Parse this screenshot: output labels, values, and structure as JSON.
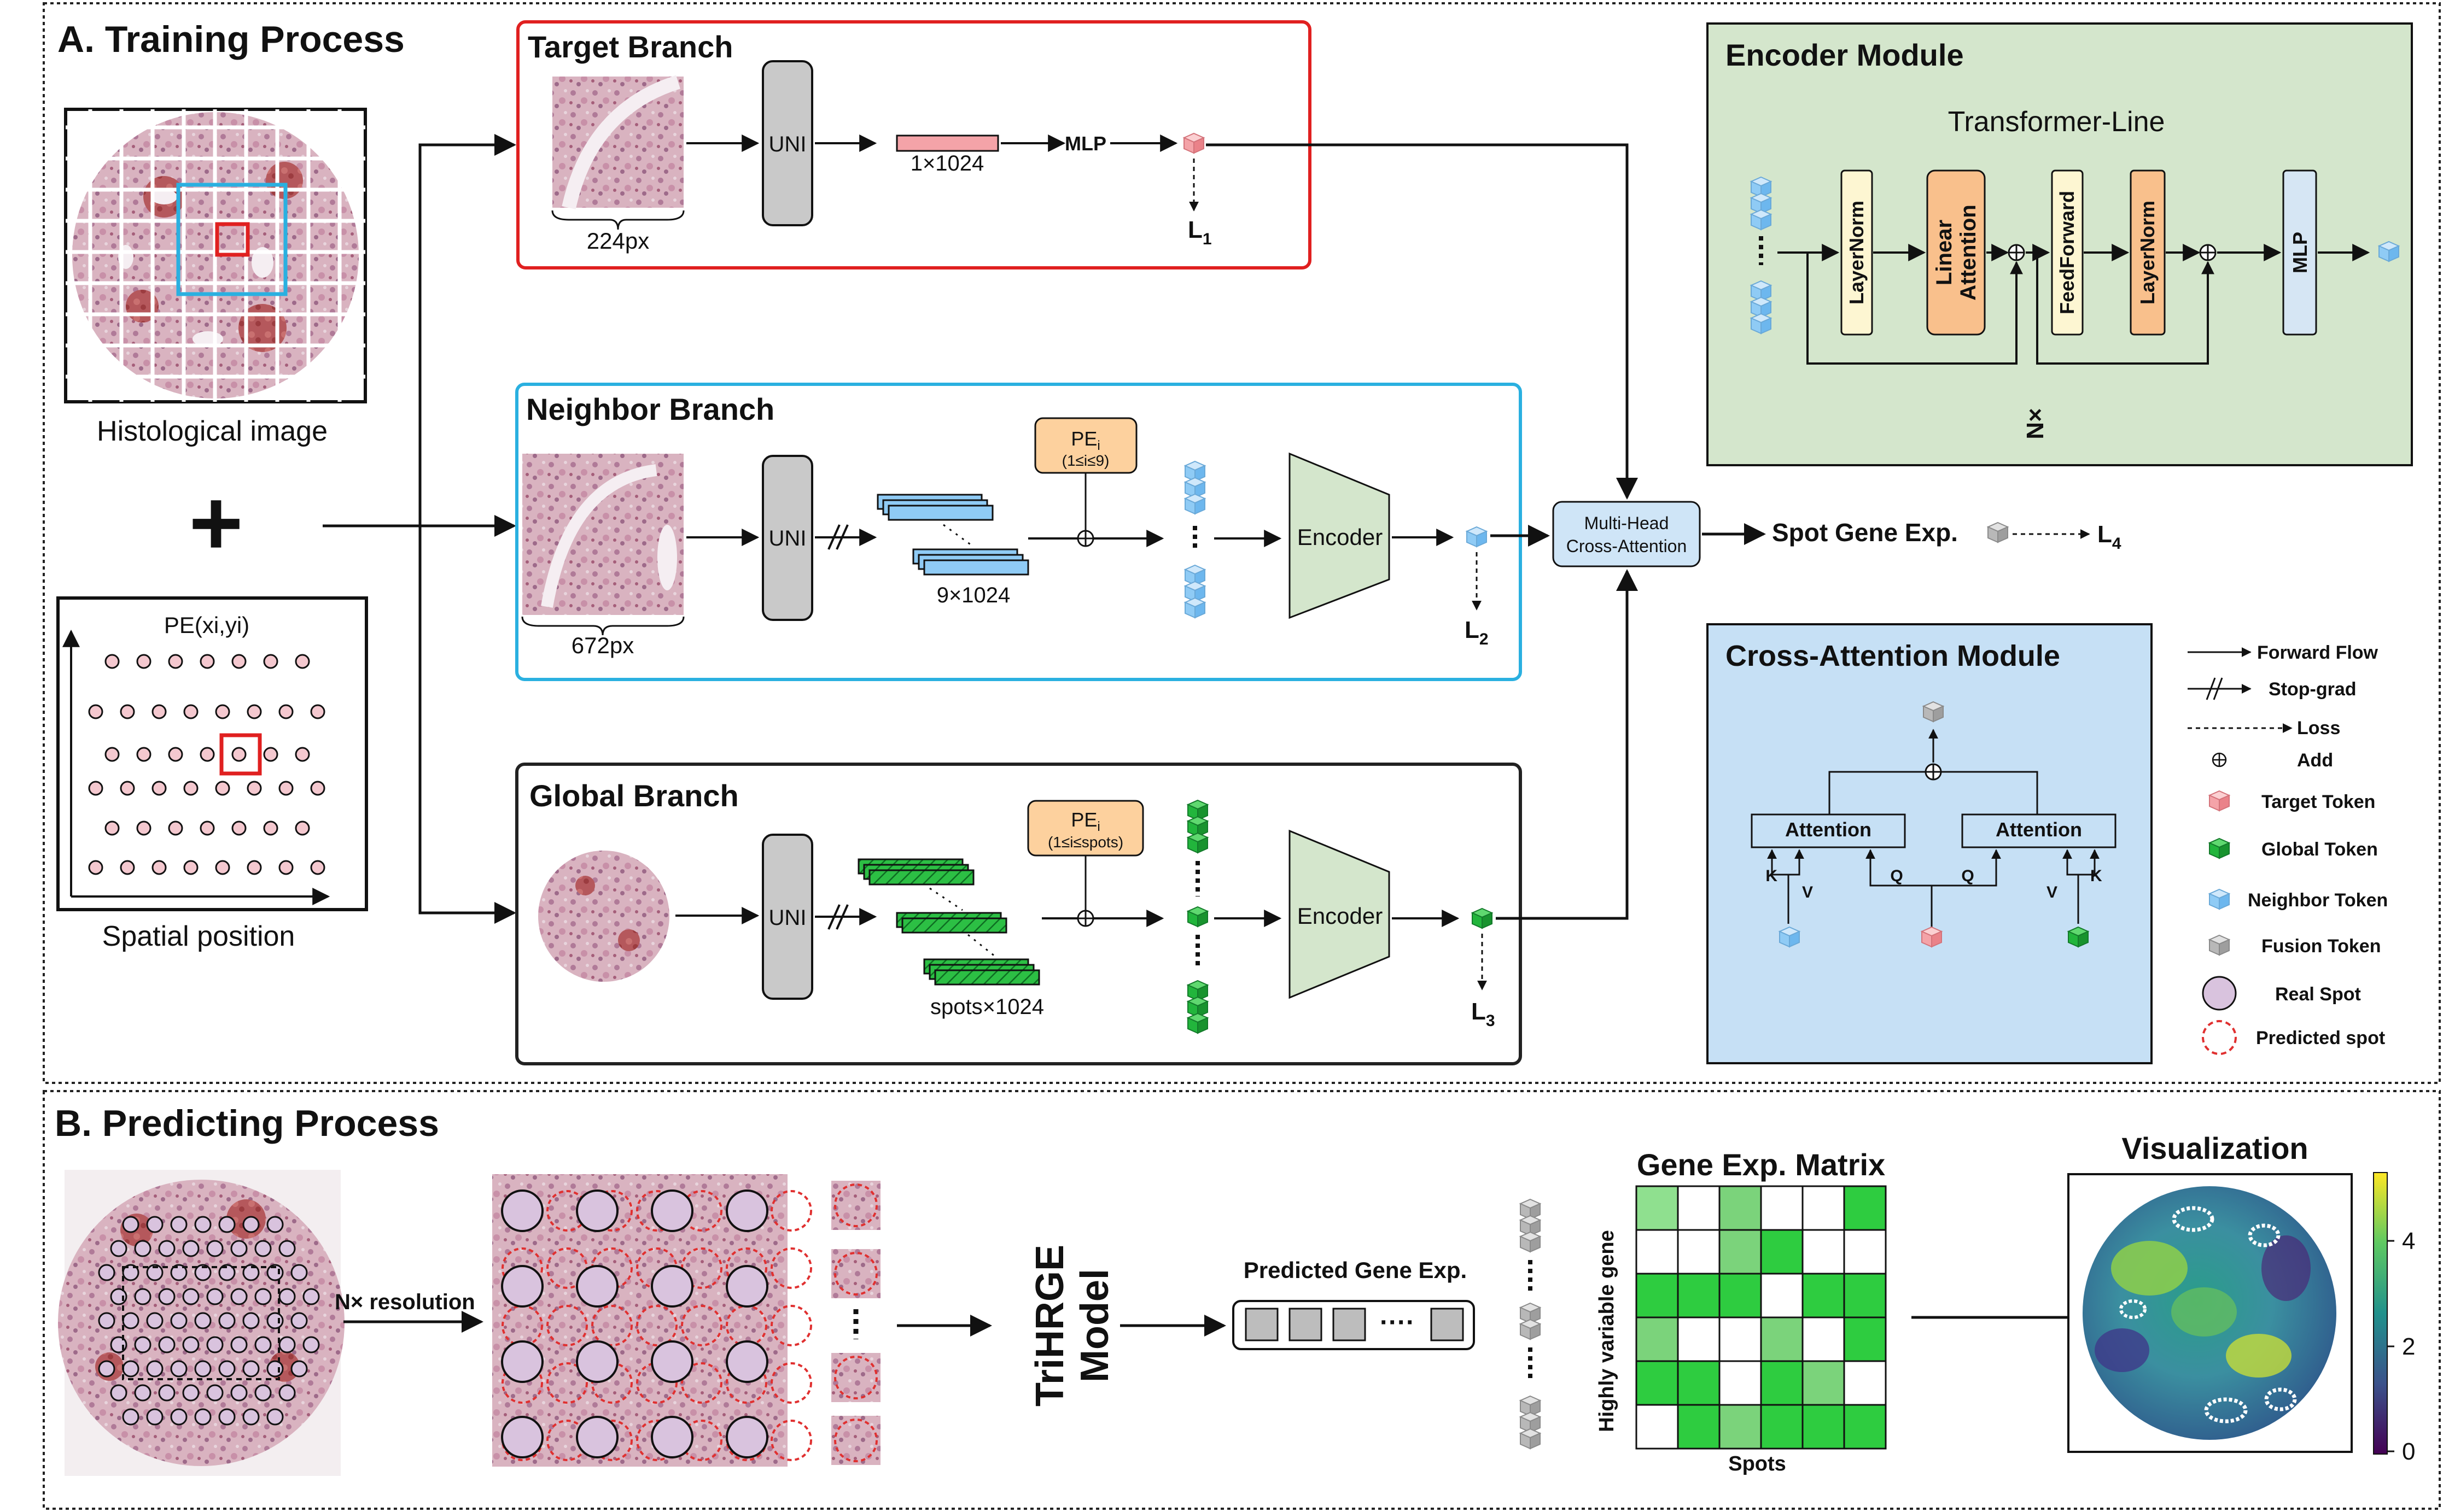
{
  "training": {
    "title": "A.  Training Process",
    "histo_label": "Histological image",
    "spatial_label": "Spatial position",
    "spatial_pe": "PE(xi,yi)",
    "target": {
      "title": "Target Branch",
      "uni": "UNI",
      "dim": "1×1024",
      "mlp": "MLP",
      "px": "224px",
      "loss": "L",
      "loss_sub": "1"
    },
    "neighbor": {
      "title": "Neighbor Branch",
      "uni": "UNI",
      "dim": "9×1024",
      "px": "672px",
      "pe": "PE",
      "pe_sub": "i",
      "pe_range": "(1≤i≤9)",
      "encoder": "Encoder",
      "loss": "L",
      "loss_sub": "2"
    },
    "global": {
      "title": "Global Branch",
      "uni": "UNI",
      "dim": "spots×1024",
      "pe": "PE",
      "pe_sub": "i",
      "pe_range": "(1≤i≤spots)",
      "encoder": "Encoder",
      "loss": "L",
      "loss_sub": "3"
    },
    "cross_attn": {
      "line1": "Multi-Head",
      "line2": "Cross-Attention"
    },
    "output": "Spot Gene Exp.",
    "output_loss": "L",
    "output_loss_sub": "4"
  },
  "encoder_module": {
    "title": "Encoder Module",
    "subtitle": "Transformer-Line",
    "layernorm1": "LayerNorm",
    "linear_attention_1": "Linear",
    "linear_attention_2": "Attention",
    "feedforward": "FeedForward",
    "layernorm2": "LayerNorm",
    "mlp": "MLP",
    "repeat": "N×"
  },
  "cross_module": {
    "title": "Cross-Attention Module",
    "attention_left": "Attention",
    "attention_right": "Attention",
    "k": "K",
    "v": "V",
    "q": "Q"
  },
  "legend": [
    {
      "label": "Forward Flow",
      "icon": "arrow-icon"
    },
    {
      "label": "Stop-grad",
      "icon": "stop-grad-icon"
    },
    {
      "label": "Loss",
      "icon": "dashed-arrow-icon"
    },
    {
      "label": "Add",
      "icon": "add-icon"
    },
    {
      "label": "Target Token",
      "icon": "pink-cube-icon",
      "color": "#f4a3a8"
    },
    {
      "label": "Global Token",
      "icon": "green-cube-icon",
      "color": "#22b53c"
    },
    {
      "label": "Neighbor Token",
      "icon": "blue-cube-icon",
      "color": "#8fcbf5"
    },
    {
      "label": "Fusion Token",
      "icon": "gray-cube-icon",
      "color": "#b8b8b8"
    },
    {
      "label": "Real Spot",
      "icon": "real-spot-icon",
      "color": "#d9c3de"
    },
    {
      "label": "Predicted spot",
      "icon": "predicted-spot-icon",
      "color": "#e03030"
    }
  ],
  "predicting": {
    "title": "B.  Predicting Process",
    "resolution": "N× resolution",
    "model_line1": "TriHRGE",
    "model_line2": "Model",
    "pred_label": "Predicted Gene Exp.",
    "pred_dots": "····",
    "matrix_title": "Gene Exp. Matrix",
    "matrix_ylabel": "Highly variable gene",
    "matrix_xlabel": "Spots",
    "vis_title": "Visualization",
    "colorbar_ticks": [
      "4",
      "2",
      "0"
    ]
  },
  "colors": {
    "target_box": "#e02020",
    "neighbor_box": "#2ab0e0",
    "global_box": "#222222",
    "encoder_bg": "#d4e6cc",
    "cross_bg": "#c6e0f5",
    "uni_fill": "#c9c9c9",
    "pe_fill": "#fdd19e",
    "layernorm_fill": "#fdf6d2",
    "attention_fill": "#f9c08c",
    "mlp_fill": "#d6e6f4"
  }
}
